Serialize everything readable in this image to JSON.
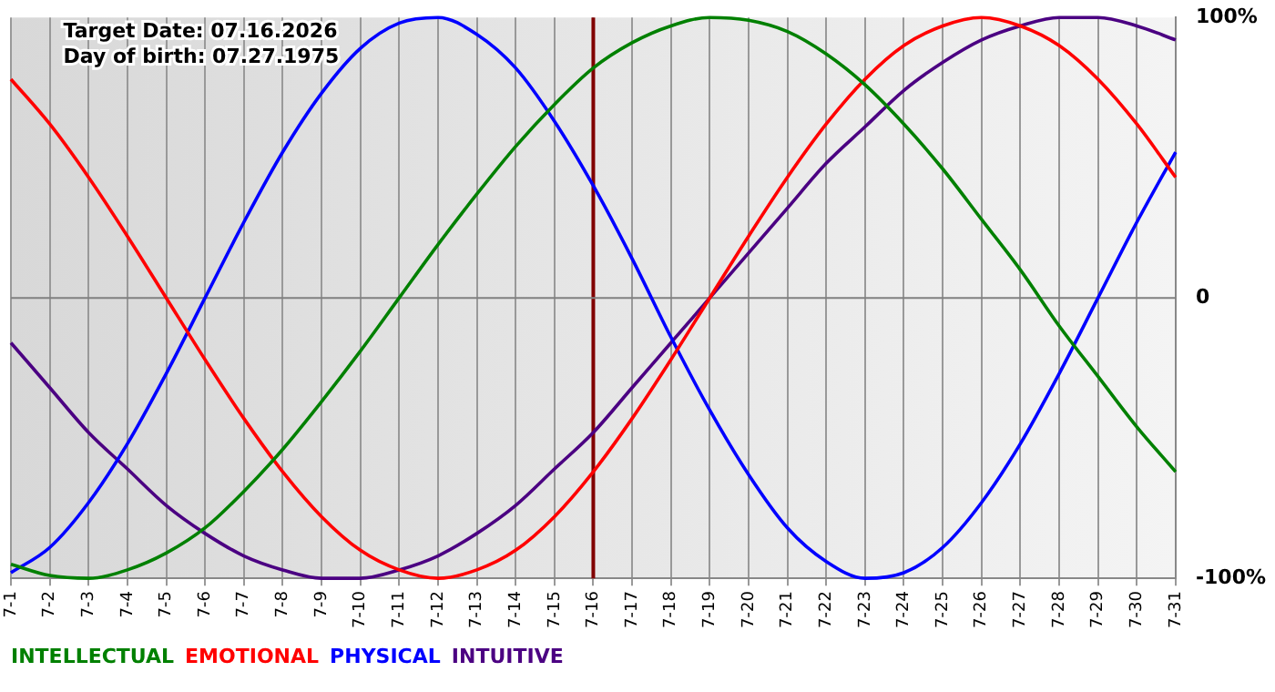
{
  "chart_data": {
    "type": "line",
    "categories": [
      "7-1",
      "7-2",
      "7-3",
      "7-4",
      "7-5",
      "7-6",
      "7-7",
      "7-8",
      "7-9",
      "7-10",
      "7-11",
      "7-12",
      "7-13",
      "7-14",
      "7-15",
      "7-16",
      "7-17",
      "7-18",
      "7-19",
      "7-20",
      "7-21",
      "7-22",
      "7-23",
      "7-24",
      "7-25",
      "7-26",
      "7-27",
      "7-28",
      "7-29",
      "7-30",
      "7-31"
    ],
    "series": [
      {
        "name": "INTELLECTUAL",
        "color": "#008000",
        "values": [
          -95,
          -99,
          -100,
          -97,
          -91,
          -82,
          -69,
          -54,
          -37,
          -19,
          0,
          19,
          37,
          54,
          69,
          82,
          91,
          97,
          100,
          99,
          95,
          87,
          76,
          62,
          46,
          28,
          10,
          -10,
          -28,
          -46,
          -62
        ]
      },
      {
        "name": "EMOTIONAL",
        "color": "#ff0000",
        "values": [
          78,
          62,
          43,
          22,
          0,
          -22,
          -43,
          -62,
          -78,
          -90,
          -97,
          -100,
          -97,
          -90,
          -78,
          -62,
          -43,
          -22,
          0,
          22,
          43,
          62,
          78,
          90,
          97,
          100,
          97,
          90,
          78,
          62,
          43
        ]
      },
      {
        "name": "PHYSICAL",
        "color": "#0000ff",
        "values": [
          -98,
          -89,
          -73,
          -52,
          -27,
          0,
          27,
          52,
          73,
          89,
          98,
          100,
          94,
          82,
          63,
          40,
          14,
          -14,
          -40,
          -63,
          -82,
          -94,
          -100,
          -98,
          -89,
          -73,
          -52,
          -27,
          0,
          27,
          52
        ]
      },
      {
        "name": "INTUITIVE",
        "color": "#4b0082",
        "values": [
          -16,
          -32,
          -48,
          -61,
          -74,
          -84,
          -92,
          -97,
          -100,
          -100,
          -97,
          -92,
          -84,
          -74,
          -61,
          -48,
          -32,
          -16,
          0,
          16,
          32,
          48,
          61,
          74,
          84,
          92,
          97,
          100,
          100,
          97,
          92
        ]
      }
    ],
    "ylim": [
      -100,
      100
    ],
    "yticks": [
      {
        "value": -100,
        "label": "-100%"
      },
      0,
      {
        "value": 100,
        "label": "100%"
      }
    ],
    "grid": "x",
    "legend": "bottom left",
    "marker": "none",
    "ref_lines": [
      {
        "axis": "x",
        "value": "7-16",
        "color": "#800000"
      },
      {
        "axis": "y",
        "value": 0,
        "color": "#808080"
      }
    ],
    "annotations": [
      "Target Date: 07.16.2026",
      "Day of birth: 07.27.1975"
    ]
  }
}
